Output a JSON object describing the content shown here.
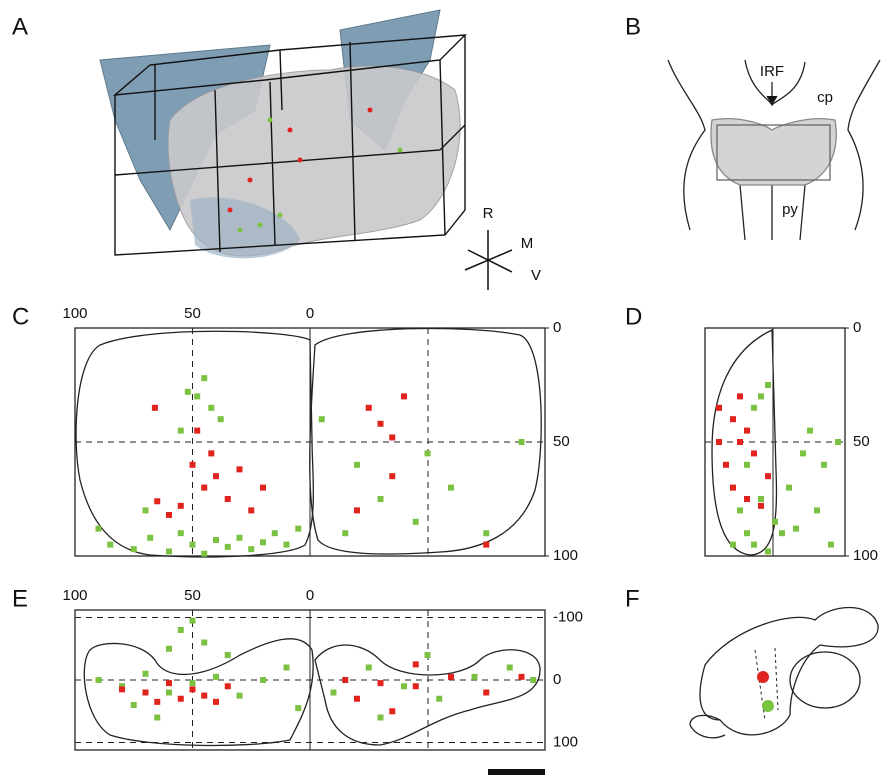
{
  "panel_labels": [
    "A",
    "B",
    "C",
    "D",
    "E",
    "F"
  ],
  "orientation_labels": [
    "R",
    "M",
    "V"
  ],
  "anatomy_labels": [
    "IRF",
    "cp",
    "py"
  ],
  "chart_data": [
    {
      "type": "scatter",
      "xlim": [
        100,
        -100
      ],
      "xticks": [
        100,
        50,
        0
      ],
      "ylim": [
        0,
        100
      ],
      "yticks": [
        0,
        50,
        100
      ],
      "series": [
        {
          "color": "#7cc242",
          "x": [
            85,
            75,
            68,
            60,
            55,
            50,
            45,
            40,
            35,
            30,
            25,
            20,
            15,
            10,
            5,
            48,
            45,
            42,
            52,
            38,
            55,
            -5,
            -20,
            -30,
            -45,
            -60,
            -75,
            -90,
            -50,
            -15,
            90,
            70
          ],
          "values": [
            95,
            97,
            92,
            98,
            90,
            95,
            99,
            93,
            96,
            92,
            97,
            94,
            90,
            95,
            88,
            30,
            22,
            35,
            28,
            40,
            45,
            40,
            60,
            75,
            85,
            70,
            90,
            50,
            55,
            90,
            88,
            80
          ]
        },
        {
          "color": "#e0231c",
          "x": [
            50,
            45,
            40,
            35,
            30,
            25,
            55,
            60,
            42,
            48,
            65,
            20,
            -25,
            -30,
            -35,
            -40,
            -35,
            -20,
            -75,
            66
          ],
          "values": [
            60,
            70,
            65,
            75,
            62,
            80,
            78,
            82,
            55,
            45,
            76,
            70,
            35,
            42,
            48,
            30,
            65,
            80,
            95,
            35
          ]
        }
      ]
    },
    {
      "type": "scatter",
      "xlim": [
        0,
        100
      ],
      "ylim": [
        0,
        100
      ],
      "yticks": [
        0,
        50,
        100
      ],
      "series": [
        {
          "color": "#7cc242",
          "x": [
            40,
            45,
            35,
            30,
            25,
            30,
            35,
            45,
            55,
            60,
            70,
            80,
            90,
            85,
            75,
            50,
            40,
            20,
            65,
            95
          ],
          "values": [
            30,
            25,
            35,
            60,
            80,
            90,
            95,
            98,
            90,
            70,
            55,
            80,
            95,
            60,
            45,
            85,
            75,
            95,
            88,
            50
          ]
        },
        {
          "color": "#e0231c",
          "x": [
            10,
            20,
            30,
            25,
            35,
            15,
            20,
            30,
            40,
            45,
            10,
            25
          ],
          "values": [
            35,
            40,
            45,
            50,
            55,
            60,
            70,
            75,
            78,
            65,
            50,
            30
          ]
        }
      ]
    },
    {
      "type": "scatter",
      "xlim": [
        100,
        -100
      ],
      "xticks": [
        100,
        50,
        0
      ],
      "ylim": [
        -112,
        112
      ],
      "yticks": [
        -100,
        0,
        100
      ],
      "series": [
        {
          "color": "#7cc242",
          "x": [
            90,
            80,
            70,
            60,
            50,
            40,
            30,
            20,
            10,
            55,
            50,
            45,
            60,
            35,
            75,
            65,
            -10,
            -25,
            -40,
            -55,
            -70,
            -85,
            -95,
            -30,
            -50,
            5
          ],
          "values": [
            0,
            10,
            -10,
            20,
            5,
            -5,
            25,
            0,
            -20,
            -80,
            -95,
            -60,
            -50,
            -40,
            40,
            60,
            20,
            -20,
            10,
            30,
            -5,
            -20,
            0,
            60,
            -40,
            45
          ]
        },
        {
          "color": "#e0231c",
          "x": [
            80,
            70,
            60,
            55,
            50,
            45,
            40,
            35,
            65,
            -15,
            -20,
            -30,
            -45,
            -35,
            -60,
            -75,
            -90,
            -45
          ],
          "values": [
            15,
            20,
            5,
            30,
            15,
            25,
            35,
            10,
            35,
            0,
            30,
            5,
            10,
            50,
            -5,
            20,
            -5,
            -25
          ]
        }
      ]
    }
  ]
}
